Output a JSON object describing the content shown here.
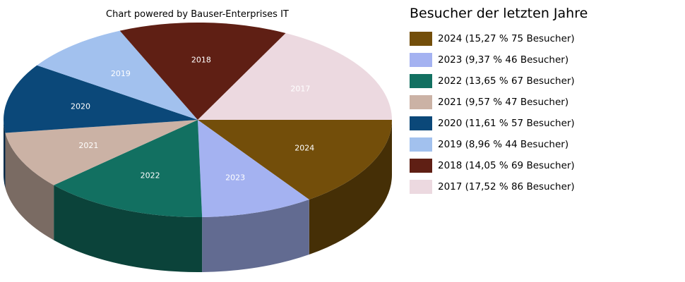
{
  "chart_data": {
    "type": "pie",
    "subtitle": "Chart powered by Bauser-Enterprises IT",
    "legend_title": "Besucher der letzten Jahre",
    "legend_position": "right",
    "slices": [
      {
        "label": "2024",
        "legend": "2024 (15,27 % 75 Besucher)",
        "value": 75,
        "color": "#734e0a",
        "label_color": "#ffffff"
      },
      {
        "label": "2023",
        "legend": "2023 (9,37 % 46 Besucher)",
        "value": 46,
        "color": "#a4b2f1",
        "label_color": "#000000"
      },
      {
        "label": "2022",
        "legend": "2022 (13,65 % 67 Besucher)",
        "value": 67,
        "color": "#127061",
        "label_color": "#ffffff"
      },
      {
        "label": "2021",
        "legend": "2021 (9,57 % 47 Besucher)",
        "value": 47,
        "color": "#cbb2a5",
        "label_color": "#000000"
      },
      {
        "label": "2020",
        "legend": "2020 (11,61 % 57 Besucher)",
        "value": 57,
        "color": "#0b4879",
        "label_color": "#ffffff"
      },
      {
        "label": "2019",
        "legend": "2019 (8,96 % 44 Besucher)",
        "value": 44,
        "color": "#a2c1ee",
        "label_color": "#000000"
      },
      {
        "label": "2018",
        "legend": "2018 (14,05 % 69 Besucher)",
        "value": 69,
        "color": "#5f1f14",
        "label_color": "#ffffff"
      },
      {
        "label": "2017",
        "legend": "2017 (17,52 % 86 Besucher)",
        "value": 86,
        "color": "#ecd9e0",
        "label_color": "#000000"
      }
    ]
  }
}
